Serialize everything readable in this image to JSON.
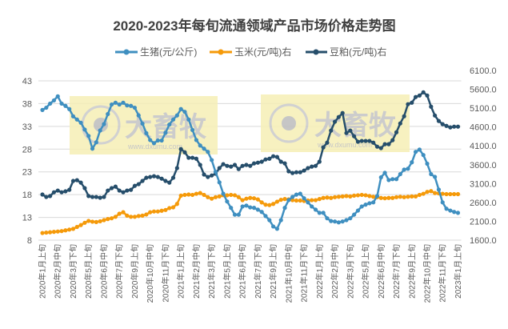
{
  "chart_data": {
    "type": "line",
    "title": "2020-2023年每旬流通领域产品市场价格走势图",
    "watermark": {
      "logo_text": "大畜牧",
      "url_text": "www.dxumu.com"
    },
    "grid": true,
    "legend_position": "top",
    "y_left": {
      "min": 8,
      "max": 43,
      "ticks": [
        "43",
        "38",
        "33",
        "28",
        "23",
        "18",
        "13",
        "8"
      ],
      "tick_values": [
        43,
        38,
        33,
        28,
        23,
        18,
        13,
        8
      ]
    },
    "y_right": {
      "min": 1600,
      "max": 6100,
      "ticks": [
        "6100.0",
        "5600.0",
        "5100.0",
        "4600.0",
        "4100.0",
        "3600.0",
        "3100.0",
        "2600.0",
        "2100.0",
        "1600.0"
      ],
      "tick_values": [
        6100,
        5600,
        5100,
        4600,
        4100,
        3600,
        3100,
        2600,
        2100,
        1600
      ]
    },
    "x_tick_labels": [
      "2020年1月上旬",
      "2020年2月中旬",
      "2020年3月下旬",
      "2020年5月上旬",
      "2020年6月中旬",
      "2020年7月下旬",
      "2020年9月上旬",
      "2020年10月中旬",
      "2020年11月下旬",
      "2021年1月上旬",
      "2021年2月中旬",
      "2021年3月下旬",
      "2021年5月上旬",
      "2021年6月中旬",
      "2021年7月下旬",
      "2021年9月上旬",
      "2021年10月中旬",
      "2021年11月下旬",
      "2022年1月上旬",
      "2022年2月中旬",
      "2022年3月下旬",
      "2022年5月上旬",
      "2022年6月中旬",
      "2022年7月下旬",
      "2022年9月上旬",
      "2022年10月中旬",
      "2022年11月下旬",
      "2023年1月上旬"
    ],
    "x_tick_every": 4,
    "series": [
      {
        "name": "生猪(元/公斤)",
        "axis": "left",
        "color": "#3f8fc0",
        "values": [
          36.6,
          37.1,
          38,
          38.7,
          39.6,
          38,
          37.5,
          36.8,
          35.2,
          34.5,
          33.8,
          32.3,
          30.9,
          28.1,
          29.5,
          32.1,
          33.5,
          35.7,
          37.8,
          38.2,
          37.8,
          38.2,
          37.6,
          37.5,
          37.1,
          35.4,
          33.6,
          31.5,
          30,
          29.3,
          29.9,
          29.9,
          31.6,
          33.4,
          34.5,
          35.4,
          36.8,
          36.2,
          34.5,
          32.2,
          30,
          28.8,
          28.1,
          27.4,
          25.6,
          23,
          20.7,
          18.2,
          16.5,
          15.1,
          13.6,
          13.6,
          15.4,
          15.6,
          15.2,
          15.1,
          14.7,
          14.2,
          13.3,
          12.4,
          11,
          10.5,
          12.4,
          15.1,
          16.8,
          17.5,
          18,
          18.2,
          17.2,
          16.3,
          15.4,
          14.7,
          14,
          14,
          12.8,
          12.2,
          12.1,
          11.9,
          12.1,
          12.4,
          12.8,
          13.6,
          14.5,
          15.4,
          15.8,
          16.1,
          16.3,
          17.7,
          21.8,
          22.8,
          21.2,
          21.4,
          21.4,
          22.5,
          23.5,
          23.7,
          25.1,
          27.4,
          27.9,
          26.7,
          24.8,
          22.5,
          21.9,
          19.1,
          16.3,
          14.9,
          14.5,
          14.2,
          14.0
        ]
      },
      {
        "name": "玉米(元/吨)右",
        "axis": "right",
        "color": "#f59a0a",
        "values": [
          1790,
          1800,
          1810,
          1820,
          1830,
          1840,
          1860,
          1880,
          1900,
          1950,
          2000,
          2060,
          2110,
          2090,
          2080,
          2100,
          2130,
          2160,
          2180,
          2220,
          2300,
          2340,
          2250,
          2220,
          2220,
          2240,
          2250,
          2280,
          2340,
          2360,
          2360,
          2380,
          2400,
          2450,
          2470,
          2560,
          2780,
          2800,
          2810,
          2800,
          2830,
          2850,
          2800,
          2740,
          2700,
          2740,
          2760,
          2790,
          2790,
          2800,
          2790,
          2740,
          2660,
          2700,
          2720,
          2710,
          2680,
          2600,
          2540,
          2530,
          2560,
          2620,
          2670,
          2690,
          2680,
          2660,
          2650,
          2650,
          2640,
          2650,
          2660,
          2660,
          2690,
          2720,
          2730,
          2720,
          2740,
          2750,
          2760,
          2770,
          2760,
          2780,
          2790,
          2800,
          2790,
          2770,
          2750,
          2740,
          2720,
          2710,
          2720,
          2720,
          2740,
          2750,
          2740,
          2750,
          2760,
          2760,
          2800,
          2830,
          2880,
          2900,
          2850,
          2840,
          2830,
          2820,
          2820,
          2820,
          2820
        ]
      },
      {
        "name": "豆粕(元/吨)右",
        "axis": "right",
        "color": "#264e6b",
        "values": [
          2810,
          2745,
          2770,
          2870,
          2915,
          2870,
          2895,
          2935,
          3170,
          3190,
          3125,
          2980,
          2770,
          2745,
          2745,
          2725,
          2745,
          2915,
          2980,
          3020,
          2915,
          2870,
          2915,
          2935,
          3040,
          3085,
          3170,
          3255,
          3275,
          3295,
          3275,
          3230,
          3170,
          3125,
          3255,
          3510,
          4015,
          3930,
          3785,
          3785,
          3760,
          3595,
          3340,
          3275,
          3315,
          3360,
          3510,
          3615,
          3570,
          3550,
          3595,
          3485,
          3570,
          3595,
          3570,
          3635,
          3655,
          3680,
          3740,
          3760,
          3825,
          3805,
          3680,
          3635,
          3425,
          3380,
          3400,
          3400,
          3445,
          3510,
          3550,
          3570,
          3680,
          4060,
          4185,
          4505,
          4740,
          4865,
          4970,
          4440,
          4505,
          4355,
          4210,
          4230,
          4230,
          4230,
          4185,
          4080,
          4040,
          4145,
          4145,
          4250,
          4460,
          4695,
          4885,
          5205,
          5245,
          5395,
          5435,
          5520,
          5435,
          5140,
          4905,
          4760,
          4675,
          4630,
          4590,
          4610,
          4610
        ]
      }
    ]
  }
}
